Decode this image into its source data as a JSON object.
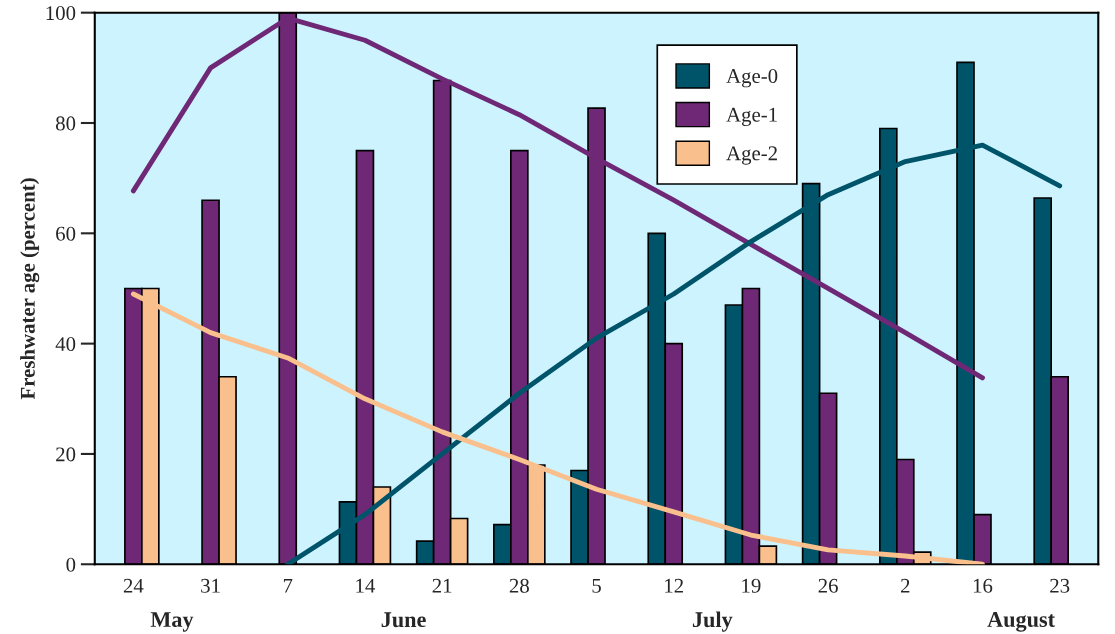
{
  "chart_data": {
    "type": "bar",
    "ylabel": "Freshwater age (percent)",
    "categories": [
      "24",
      "31",
      "7",
      "14",
      "21",
      "28",
      "5",
      "12",
      "19",
      "26",
      "2",
      "16",
      "23"
    ],
    "series": [
      {
        "name": "Age-0",
        "color": "#00546a",
        "values": [
          null,
          null,
          null,
          11.3,
          4.2,
          7.2,
          17,
          60,
          47,
          69,
          79,
          91,
          66.4
        ]
      },
      {
        "name": "Age-1",
        "color": "#6e2876",
        "values": [
          50,
          66,
          100,
          75,
          87.7,
          75,
          82.7,
          40,
          50,
          31,
          19,
          9,
          34
        ]
      },
      {
        "name": "Age-2",
        "color": "#f9c08e",
        "values": [
          50,
          34,
          null,
          14,
          8.3,
          18,
          null,
          null,
          3.3,
          null,
          2.2,
          null,
          null
        ]
      },
      {
        "type": "line",
        "color": "#6e2876",
        "values": [
          67.7,
          90,
          99,
          95,
          88,
          81.5,
          73.6,
          66,
          58,
          50,
          42,
          33.8,
          null
        ]
      },
      {
        "type": "line",
        "color": "#00546a",
        "values": [
          null,
          null,
          0,
          9,
          20,
          31,
          41,
          49,
          58.5,
          67,
          73,
          76,
          68.6
        ]
      },
      {
        "type": "line",
        "color": "#f9c08e",
        "values": [
          49,
          42,
          37.4,
          30,
          24,
          19,
          13.6,
          9.5,
          5.3,
          2.6,
          1.5,
          0,
          null
        ]
      }
    ],
    "ylim": [
      0,
      100
    ],
    "yticks": [
      0,
      20,
      40,
      60,
      80,
      100
    ],
    "grid": false,
    "legend": "top right",
    "annotations": [
      "May",
      "June",
      "July",
      "August"
    ]
  }
}
